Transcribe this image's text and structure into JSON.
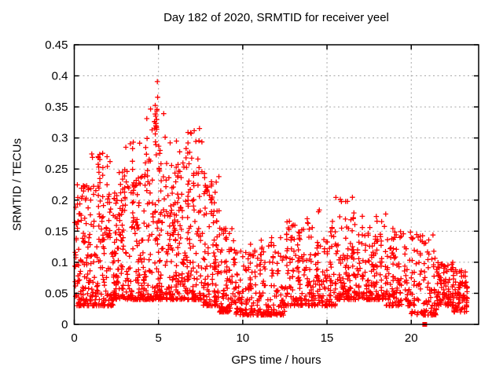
{
  "chart_data": {
    "type": "scatter",
    "title": "Day 182 of 2020, SRMTID for receiver yeel",
    "xlabel": "GPS time / hours",
    "ylabel": "SRMTID / TECUs",
    "xlim": [
      0,
      24
    ],
    "ylim": [
      0,
      0.45
    ],
    "xticks": [
      {
        "v": 0,
        "label": "0"
      },
      {
        "v": 5,
        "label": "5"
      },
      {
        "v": 10,
        "label": "10"
      },
      {
        "v": 15,
        "label": "15"
      },
      {
        "v": 20,
        "label": "20"
      }
    ],
    "yticks": [
      {
        "v": 0,
        "label": "0"
      },
      {
        "v": 0.05,
        "label": "0.05"
      },
      {
        "v": 0.1,
        "label": "0.1"
      },
      {
        "v": 0.15,
        "label": "0.15"
      },
      {
        "v": 0.2,
        "label": "0.2"
      },
      {
        "v": 0.25,
        "label": "0.25"
      },
      {
        "v": 0.3,
        "label": "0.3"
      },
      {
        "v": 0.35,
        "label": "0.35"
      },
      {
        "v": 0.4,
        "label": "0.4"
      },
      {
        "v": 0.45,
        "label": "0.45"
      }
    ],
    "grid": {
      "show": true,
      "style": "dotted",
      "color": "#a8a8a8"
    },
    "legend": {
      "show": false
    },
    "marker": {
      "shape": "plus",
      "color": "#ff0000",
      "size": 7
    },
    "colors": {
      "frame": "#000000",
      "background": "#ffffff",
      "text": "#000000",
      "series": "#ff0000"
    },
    "notable_points": [
      {
        "x": 4.93,
        "y": 0.402,
        "note": "maximum"
      },
      {
        "x": 4.85,
        "y": 0.345
      },
      {
        "x": 6.76,
        "y": 0.315
      },
      {
        "x": 3.5,
        "y": 0.295
      },
      {
        "x": 1.75,
        "y": 0.285
      },
      {
        "x": 16.15,
        "y": 0.21
      },
      {
        "x": 23.3,
        "y": 0.05,
        "note": "last data"
      }
    ],
    "special_points": [
      {
        "x": 20.8,
        "y": 0.0,
        "marker": "square"
      }
    ],
    "point_cloud": {
      "seed": 20200182,
      "segments": [
        {
          "x0": 0.0,
          "x1": 1.0,
          "n": 110,
          "y_min": 0.03,
          "y_max": 0.23,
          "skew": 2.2
        },
        {
          "x0": 1.0,
          "x1": 2.3,
          "n": 130,
          "y_min": 0.03,
          "y_max": 0.28,
          "skew": 2.4
        },
        {
          "x0": 2.3,
          "x1": 3.3,
          "n": 110,
          "y_min": 0.04,
          "y_max": 0.25,
          "skew": 2.2
        },
        {
          "x0": 3.3,
          "x1": 4.3,
          "n": 110,
          "y_min": 0.04,
          "y_max": 0.3,
          "skew": 2.4
        },
        {
          "x0": 4.3,
          "x1": 5.4,
          "n": 120,
          "y_min": 0.04,
          "y_max": 0.36,
          "skew": 2.6
        },
        {
          "x0": 5.4,
          "x1": 6.4,
          "n": 110,
          "y_min": 0.04,
          "y_max": 0.3,
          "skew": 2.6
        },
        {
          "x0": 6.4,
          "x1": 7.6,
          "n": 120,
          "y_min": 0.04,
          "y_max": 0.32,
          "skew": 2.6
        },
        {
          "x0": 7.6,
          "x1": 8.6,
          "n": 100,
          "y_min": 0.03,
          "y_max": 0.24,
          "skew": 2.6
        },
        {
          "x0": 8.6,
          "x1": 9.6,
          "n": 90,
          "y_min": 0.02,
          "y_max": 0.16,
          "skew": 2.2
        },
        {
          "x0": 9.6,
          "x1": 11.0,
          "n": 100,
          "y_min": 0.015,
          "y_max": 0.12,
          "skew": 1.8
        },
        {
          "x0": 11.0,
          "x1": 12.5,
          "n": 110,
          "y_min": 0.015,
          "y_max": 0.14,
          "skew": 2.0
        },
        {
          "x0": 12.5,
          "x1": 14.0,
          "n": 110,
          "y_min": 0.03,
          "y_max": 0.17,
          "skew": 2.2
        },
        {
          "x0": 14.0,
          "x1": 15.5,
          "n": 110,
          "y_min": 0.03,
          "y_max": 0.16,
          "skew": 2.2
        },
        {
          "x0": 15.5,
          "x1": 17.0,
          "n": 120,
          "y_min": 0.04,
          "y_max": 0.21,
          "skew": 2.4
        },
        {
          "x0": 17.0,
          "x1": 18.5,
          "n": 110,
          "y_min": 0.04,
          "y_max": 0.18,
          "skew": 2.4
        },
        {
          "x0": 18.5,
          "x1": 20.0,
          "n": 100,
          "y_min": 0.03,
          "y_max": 0.15,
          "skew": 2.2
        },
        {
          "x0": 20.0,
          "x1": 21.5,
          "n": 100,
          "y_min": 0.015,
          "y_max": 0.15,
          "skew": 2.4
        },
        {
          "x0": 21.5,
          "x1": 22.5,
          "n": 85,
          "y_min": 0.03,
          "y_max": 0.1,
          "skew": 1.8
        },
        {
          "x0": 22.5,
          "x1": 23.35,
          "n": 80,
          "y_min": 0.02,
          "y_max": 0.09,
          "skew": 1.6
        }
      ],
      "spikes": [
        {
          "x": 0.15,
          "y_min": 0.1,
          "y_max": 0.225,
          "n": 6
        },
        {
          "x": 0.6,
          "y_min": 0.12,
          "y_max": 0.222,
          "n": 6
        },
        {
          "x": 1.0,
          "y_min": 0.1,
          "y_max": 0.2,
          "n": 5
        },
        {
          "x": 1.47,
          "y_min": 0.19,
          "y_max": 0.275,
          "n": 8
        },
        {
          "x": 1.75,
          "y_min": 0.14,
          "y_max": 0.285,
          "n": 7
        },
        {
          "x": 2.05,
          "y_min": 0.12,
          "y_max": 0.235,
          "n": 6
        },
        {
          "x": 2.5,
          "y_min": 0.1,
          "y_max": 0.22,
          "n": 5
        },
        {
          "x": 2.8,
          "y_min": 0.12,
          "y_max": 0.25,
          "n": 6
        },
        {
          "x": 3.05,
          "y_min": 0.17,
          "y_max": 0.29,
          "n": 7
        },
        {
          "x": 3.5,
          "y_min": 0.14,
          "y_max": 0.295,
          "n": 8
        },
        {
          "x": 3.8,
          "y_min": 0.12,
          "y_max": 0.26,
          "n": 5
        },
        {
          "x": 4.4,
          "y_min": 0.17,
          "y_max": 0.28,
          "n": 6
        },
        {
          "x": 4.85,
          "y_min": 0.27,
          "y_max": 0.345,
          "n": 8
        },
        {
          "x": 4.93,
          "y_min": 0.32,
          "y_max": 0.402,
          "n": 4
        },
        {
          "x": 5.1,
          "y_min": 0.14,
          "y_max": 0.3,
          "n": 8
        },
        {
          "x": 5.5,
          "y_min": 0.12,
          "y_max": 0.27,
          "n": 6
        },
        {
          "x": 5.95,
          "y_min": 0.12,
          "y_max": 0.235,
          "n": 6
        },
        {
          "x": 6.3,
          "y_min": 0.13,
          "y_max": 0.26,
          "n": 5
        },
        {
          "x": 6.76,
          "y_min": 0.19,
          "y_max": 0.315,
          "n": 8
        },
        {
          "x": 7.05,
          "y_min": 0.17,
          "y_max": 0.29,
          "n": 6
        },
        {
          "x": 7.4,
          "y_min": 0.14,
          "y_max": 0.27,
          "n": 7
        },
        {
          "x": 7.75,
          "y_min": 0.12,
          "y_max": 0.26,
          "n": 6
        },
        {
          "x": 8.1,
          "y_min": 0.1,
          "y_max": 0.23,
          "n": 6
        },
        {
          "x": 8.45,
          "y_min": 0.08,
          "y_max": 0.185,
          "n": 5
        },
        {
          "x": 9.0,
          "y_min": 0.07,
          "y_max": 0.155,
          "n": 5
        },
        {
          "x": 10.4,
          "y_min": 0.06,
          "y_max": 0.13,
          "n": 5
        },
        {
          "x": 11.3,
          "y_min": 0.06,
          "y_max": 0.125,
          "n": 4
        },
        {
          "x": 11.8,
          "y_min": 0.06,
          "y_max": 0.13,
          "n": 5
        },
        {
          "x": 12.6,
          "y_min": 0.07,
          "y_max": 0.165,
          "n": 6
        },
        {
          "x": 13.3,
          "y_min": 0.07,
          "y_max": 0.17,
          "n": 6
        },
        {
          "x": 13.9,
          "y_min": 0.06,
          "y_max": 0.155,
          "n": 5
        },
        {
          "x": 14.5,
          "y_min": 0.07,
          "y_max": 0.19,
          "n": 6
        },
        {
          "x": 15.3,
          "y_min": 0.07,
          "y_max": 0.19,
          "n": 6
        },
        {
          "x": 16.15,
          "y_min": 0.09,
          "y_max": 0.21,
          "n": 8
        },
        {
          "x": 16.5,
          "y_min": 0.07,
          "y_max": 0.18,
          "n": 5
        },
        {
          "x": 17.1,
          "y_min": 0.07,
          "y_max": 0.19,
          "n": 6
        },
        {
          "x": 17.7,
          "y_min": 0.06,
          "y_max": 0.17,
          "n": 5
        },
        {
          "x": 18.2,
          "y_min": 0.07,
          "y_max": 0.185,
          "n": 6
        },
        {
          "x": 18.9,
          "y_min": 0.06,
          "y_max": 0.16,
          "n": 5
        },
        {
          "x": 19.3,
          "y_min": 0.05,
          "y_max": 0.155,
          "n": 5
        },
        {
          "x": 20.0,
          "y_min": 0.05,
          "y_max": 0.14,
          "n": 4
        },
        {
          "x": 20.6,
          "y_min": 0.05,
          "y_max": 0.15,
          "n": 5
        },
        {
          "x": 21.0,
          "y_min": 0.05,
          "y_max": 0.13,
          "n": 4
        },
        {
          "x": 21.6,
          "y_min": 0.04,
          "y_max": 0.12,
          "n": 4
        },
        {
          "x": 22.0,
          "y_min": 0.04,
          "y_max": 0.1,
          "n": 4
        }
      ]
    }
  }
}
